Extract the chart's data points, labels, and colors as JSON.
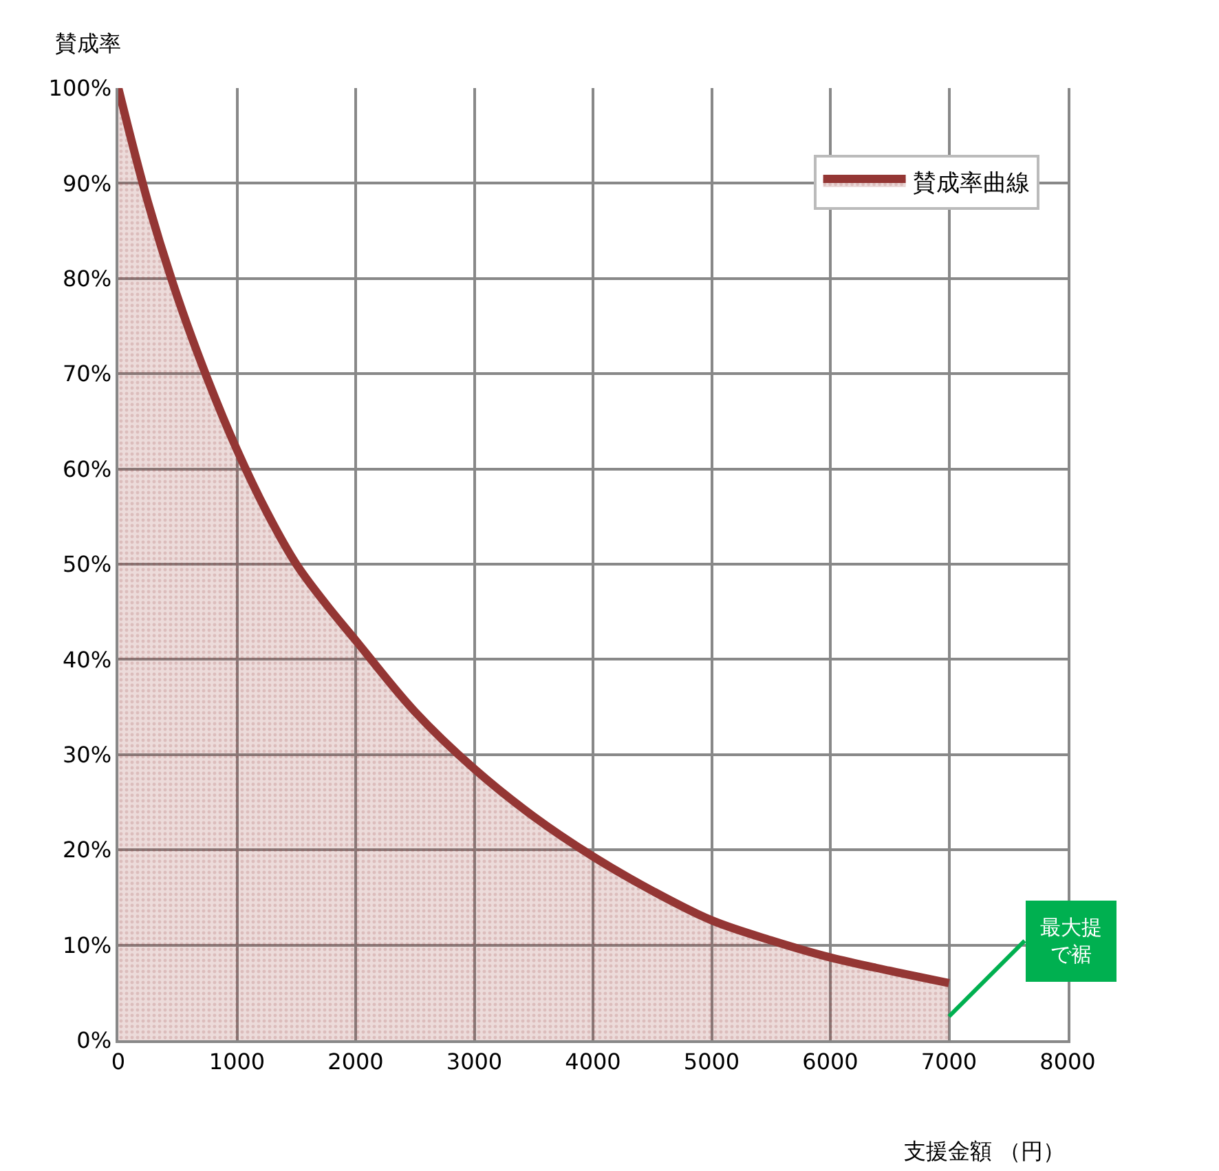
{
  "chart_data": {
    "type": "area",
    "xlabel": "支援金額 （円）",
    "ylabel": "賛成率",
    "x": [
      0,
      250,
      500,
      750,
      1000,
      1250,
      1500,
      1750,
      2000,
      2500,
      3000,
      3500,
      4000,
      4500,
      5000,
      5500,
      6000,
      6500,
      7000
    ],
    "series": [
      {
        "name": "賛成率曲線",
        "color": "#943634",
        "values": [
          100,
          88,
          78,
          69.5,
          62,
          55.5,
          50,
          45.8,
          42,
          34.5,
          28.5,
          23.5,
          19.3,
          15.7,
          12.6,
          10.5,
          8.7,
          7.3,
          6
        ]
      }
    ],
    "xlim": [
      0,
      8000
    ],
    "xticks": [
      0,
      1000,
      2000,
      3000,
      4000,
      5000,
      6000,
      7000,
      8000
    ],
    "ylim": [
      0,
      100
    ],
    "yticks": [
      {
        "value": 0,
        "label": "0%"
      },
      {
        "value": 10,
        "label": "10%"
      },
      {
        "value": 20,
        "label": "20%"
      },
      {
        "value": 30,
        "label": "30%"
      },
      {
        "value": 40,
        "label": "40%"
      },
      {
        "value": 50,
        "label": "50%"
      },
      {
        "value": 60,
        "label": "60%"
      },
      {
        "value": 70,
        "label": "70%"
      },
      {
        "value": 80,
        "label": "80%"
      },
      {
        "value": 90,
        "label": "90%"
      },
      {
        "value": 100,
        "label": "100%"
      }
    ],
    "grid": true,
    "legend": "top right",
    "marker": "none",
    "line_style": "solid",
    "annotations": [
      "最大提で裾"
    ]
  }
}
